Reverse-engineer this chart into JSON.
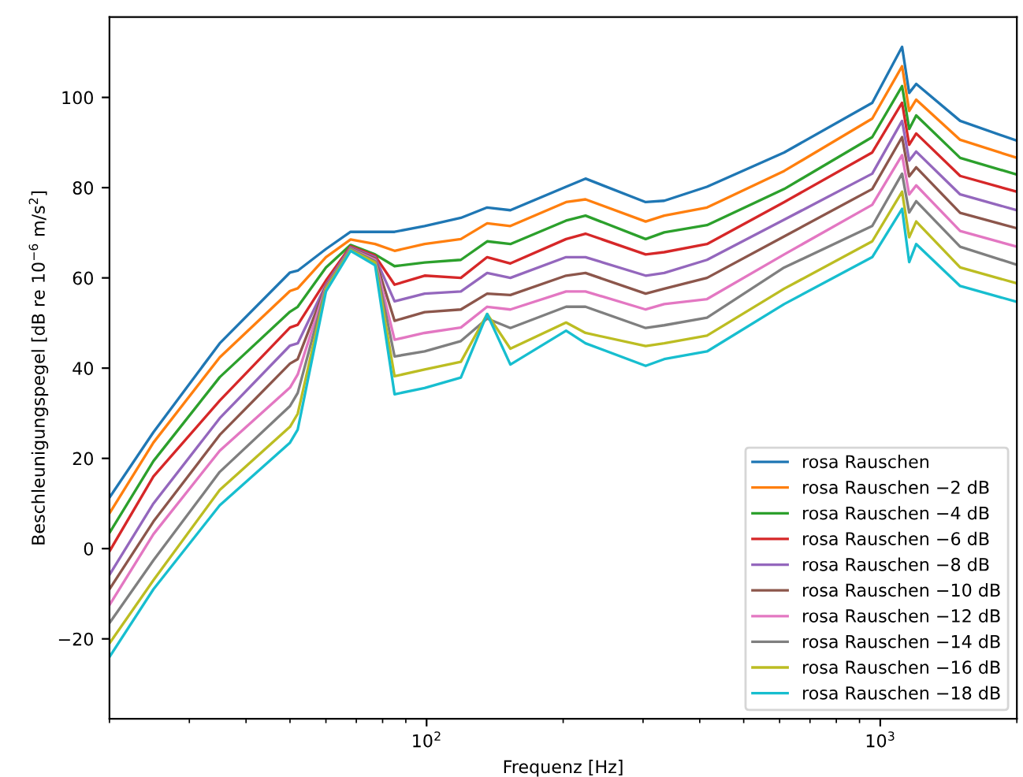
{
  "chart_data": {
    "type": "line",
    "xlabel": "Frequenz [Hz]",
    "ylabel": "Beschleunigungspegel [dB re 10$^{−6}$ m/s$^{2}$]",
    "x": [
      20,
      25,
      35,
      50,
      52,
      60,
      68,
      77,
      85,
      99,
      119,
      136,
      153,
      203,
      224,
      304,
      334,
      415,
      614,
      960,
      1117,
      1158,
      1200,
      1500,
      2000
    ],
    "series": [
      {
        "name": "rosa Rauschen",
        "color": "#1f77b4",
        "values": [
          11.3,
          25.8,
          45.5,
          61.2,
          61.6,
          66.4,
          70.2,
          70.2,
          70.2,
          71.5,
          73.3,
          75.6,
          75,
          80.2,
          82,
          76.8,
          77.1,
          80.2,
          87.8,
          98.8,
          111.2,
          101,
          103,
          94.8,
          90.4
        ]
      },
      {
        "name": "rosa Rauschen −2 dB",
        "color": "#ff7f0e",
        "values": [
          7.8,
          23.5,
          42.4,
          57.1,
          57.7,
          64.6,
          68.5,
          67.5,
          66,
          67.5,
          68.6,
          72.1,
          71.5,
          76.8,
          77.4,
          72.5,
          73.8,
          75.6,
          83.7,
          95.3,
          106.9,
          97,
          99.5,
          90.6,
          86.6
        ]
      },
      {
        "name": "rosa Rauschen −4 dB",
        "color": "#2ca02c",
        "values": [
          3.5,
          19.4,
          38,
          52.5,
          53.6,
          62.3,
          67.3,
          65.2,
          62.6,
          63.4,
          64,
          68.1,
          67.5,
          72.7,
          73.8,
          68.6,
          70.1,
          71.7,
          79.7,
          91.2,
          102.5,
          93,
          96,
          86.6,
          82.9
        ]
      },
      {
        "name": "rosa Rauschen −6 dB",
        "color": "#d62728",
        "values": [
          -0.6,
          16,
          32.8,
          49,
          49.6,
          59.4,
          67,
          64.9,
          58.5,
          60.5,
          60,
          64.6,
          63.2,
          68.6,
          69.8,
          65.2,
          65.7,
          67.5,
          76.8,
          87.8,
          98.8,
          89.5,
          92,
          82.6,
          79.1
        ]
      },
      {
        "name": "rosa Rauschen −8 dB",
        "color": "#9467bd",
        "values": [
          -5.8,
          10,
          28.9,
          45,
          45.5,
          58.5,
          66.8,
          64.6,
          54.8,
          56.5,
          57,
          61.1,
          60,
          64.6,
          64.6,
          60.5,
          61.1,
          64,
          72.9,
          83.1,
          94.8,
          86,
          88,
          78.5,
          75
        ]
      },
      {
        "name": "rosa Rauschen −10 dB",
        "color": "#8c564b",
        "values": [
          -9,
          6,
          25.2,
          41,
          42,
          58.2,
          66.6,
          64.3,
          50.5,
          52.4,
          53,
          56.5,
          56.2,
          60.5,
          61.1,
          56.5,
          57.6,
          60,
          69.2,
          79.7,
          91.2,
          82.5,
          84.5,
          74.4,
          71
        ]
      },
      {
        "name": "rosa Rauschen −12 dB",
        "color": "#e377c2",
        "values": [
          -12.5,
          3.2,
          21.7,
          35.7,
          38.6,
          58,
          66.5,
          64,
          46.3,
          47.8,
          49,
          53.6,
          53,
          57,
          57,
          53,
          54.2,
          55.3,
          65.2,
          76.2,
          87.2,
          78.5,
          80.5,
          70.4,
          66.9
        ]
      },
      {
        "name": "rosa Rauschen −14 dB",
        "color": "#7f7f7f",
        "values": [
          -16.5,
          -2.6,
          17,
          31.6,
          34.5,
          57.8,
          66.4,
          63.7,
          42.6,
          43.7,
          46,
          51,
          48.9,
          53.6,
          53.6,
          48.9,
          49.5,
          51.2,
          62.3,
          71.5,
          83.1,
          74.5,
          77,
          66.9,
          62.9
        ]
      },
      {
        "name": "rosa Rauschen −16 dB",
        "color": "#bcbd22",
        "values": [
          -21,
          -7,
          13,
          27,
          29.9,
          57.5,
          66.2,
          63.4,
          38.2,
          39.7,
          41.4,
          52,
          44.3,
          50.1,
          47.8,
          44.9,
          45.5,
          47.2,
          57.6,
          68.1,
          79.1,
          69,
          72.5,
          62.3,
          58.8
        ]
      },
      {
        "name": "rosa Rauschen −18 dB",
        "color": "#17becf",
        "values": [
          -24,
          -9,
          9.6,
          23.5,
          26.4,
          57,
          66,
          62.8,
          34.2,
          35.6,
          37.9,
          52,
          40.8,
          48.3,
          45.5,
          40.5,
          42,
          43.7,
          54.2,
          64.6,
          75.3,
          63.5,
          67.5,
          58.2,
          54.7
        ]
      }
    ],
    "log": "x",
    "xlim": [
      20,
      2000
    ],
    "xticks": [
      {
        "value": 100,
        "label": "10$^{2}$"
      },
      {
        "value": 1000,
        "label": "10$^{3}$"
      }
    ],
    "ylim": [
      -37.7,
      117.8
    ],
    "yticks": [
      {
        "value": -20,
        "label": "−20"
      },
      0,
      20,
      40,
      60,
      80,
      100
    ],
    "legend": "bottom right",
    "grid": false,
    "marker": "none",
    "line_style": "solid"
  }
}
